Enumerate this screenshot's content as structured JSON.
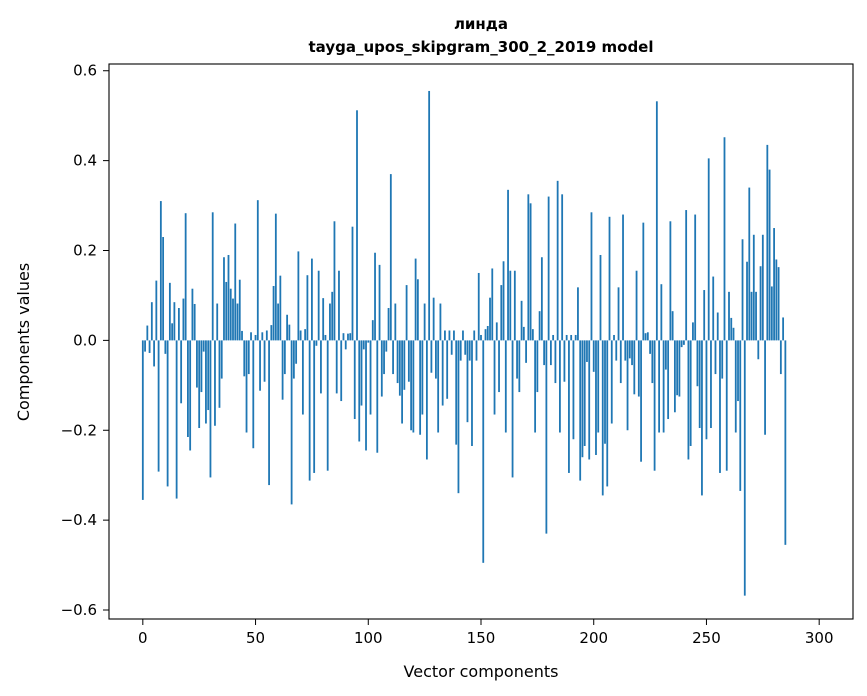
{
  "chart_data": {
    "type": "bar",
    "title": "линда",
    "subtitle": "tayga_upos_skipgram_300_2_2019 model",
    "xlabel": "Vector components",
    "ylabel": "Components values",
    "xlim": [
      -15,
      315
    ],
    "ylim": [
      -0.62,
      0.615
    ],
    "xticks": [
      0,
      50,
      100,
      150,
      200,
      250,
      300
    ],
    "xtick_labels": [
      "0",
      "50",
      "100",
      "150",
      "200",
      "250",
      "300"
    ],
    "yticks": [
      -0.6,
      -0.4,
      -0.2,
      0.0,
      0.2,
      0.4,
      0.6
    ],
    "ytick_labels": [
      "−0.6",
      "−0.4",
      "−0.2",
      "0.0",
      "0.2",
      "0.4",
      "0.6"
    ],
    "grid": false,
    "bar_color": "#1f77b4",
    "series": [
      {
        "values": [
          -0.355,
          -0.025,
          0.033,
          -0.028,
          0.085,
          -0.058,
          0.133,
          -0.292,
          0.31,
          0.23,
          -0.03,
          -0.325,
          0.128,
          0.038,
          0.085,
          -0.352,
          0.072,
          -0.14,
          0.093,
          0.283,
          -0.215,
          -0.245,
          0.115,
          0.081,
          -0.105,
          -0.195,
          -0.115,
          -0.025,
          -0.185,
          -0.155,
          -0.305,
          0.285,
          -0.19,
          0.082,
          -0.15,
          -0.085,
          0.185,
          0.13,
          0.19,
          0.115,
          0.093,
          0.26,
          0.082,
          0.135,
          0.021,
          -0.08,
          -0.205,
          -0.075,
          0.018,
          -0.24,
          0.012,
          0.312,
          -0.112,
          0.018,
          -0.092,
          0.022,
          -0.322,
          0.034,
          0.121,
          0.282,
          0.082,
          0.144,
          -0.132,
          -0.075,
          0.057,
          0.035,
          -0.365,
          -0.085,
          -0.052,
          0.198,
          0.022,
          -0.165,
          0.025,
          0.145,
          -0.312,
          0.182,
          -0.295,
          -0.012,
          0.155,
          -0.118,
          0.094,
          0.012,
          -0.29,
          0.082,
          0.108,
          0.265,
          -0.118,
          0.155,
          -0.135,
          0.016,
          -0.02,
          0.015,
          0.016,
          0.253,
          -0.175,
          0.512,
          -0.225,
          -0.145,
          -0.02,
          -0.245,
          -0.005,
          -0.165,
          0.045,
          0.195,
          -0.25,
          0.168,
          -0.125,
          -0.075,
          -0.025,
          0.072,
          0.37,
          -0.075,
          0.082,
          -0.095,
          -0.123,
          -0.185,
          -0.11,
          0.123,
          -0.092,
          -0.2,
          -0.205,
          0.182,
          0.136,
          -0.21,
          -0.165,
          0.082,
          -0.265,
          0.555,
          -0.072,
          0.095,
          -0.085,
          -0.205,
          0.082,
          -0.145,
          0.022,
          -0.13,
          0.022,
          -0.032,
          0.022,
          -0.232,
          -0.34,
          -0.045,
          0.022,
          -0.032,
          -0.182,
          -0.045,
          -0.235,
          0.022,
          -0.045,
          0.15,
          0.012,
          -0.495,
          0.025,
          0.032,
          0.095,
          0.16,
          -0.165,
          0.04,
          -0.115,
          0.123,
          0.176,
          -0.205,
          0.335,
          0.155,
          -0.305,
          0.155,
          -0.085,
          -0.115,
          0.088,
          0.03,
          -0.05,
          0.325,
          0.305,
          0.025,
          -0.205,
          -0.115,
          0.065,
          0.185,
          -0.055,
          -0.43,
          0.32,
          -0.055,
          0.012,
          -0.095,
          0.355,
          -0.205,
          0.325,
          -0.092,
          0.012,
          -0.295,
          0.012,
          -0.22,
          0.012,
          0.118,
          -0.312,
          -0.26,
          -0.235,
          -0.048,
          -0.265,
          0.285,
          -0.07,
          -0.255,
          -0.205,
          0.19,
          -0.345,
          -0.23,
          -0.325,
          0.275,
          -0.185,
          0.012,
          -0.045,
          0.118,
          -0.095,
          0.28,
          -0.045,
          -0.2,
          -0.04,
          -0.055,
          -0.12,
          0.155,
          -0.125,
          -0.27,
          0.262,
          0.016,
          0.018,
          -0.03,
          -0.095,
          -0.29,
          0.532,
          -0.205,
          0.125,
          -0.205,
          -0.065,
          -0.175,
          0.265,
          0.065,
          -0.16,
          -0.122,
          -0.125,
          -0.015,
          -0.01,
          0.29,
          -0.265,
          -0.235,
          0.04,
          0.28,
          -0.102,
          -0.195,
          -0.345,
          0.112,
          -0.22,
          0.405,
          -0.195,
          0.142,
          -0.075,
          0.062,
          -0.295,
          -0.085,
          0.452,
          -0.29,
          0.108,
          0.05,
          0.028,
          -0.205,
          -0.135,
          -0.335,
          0.225,
          -0.568,
          0.175,
          0.34,
          0.108,
          0.235,
          0.108,
          -0.042,
          0.165,
          0.235,
          -0.21,
          0.435,
          0.38,
          0.12,
          0.25,
          0.18,
          0.163,
          -0.075,
          0.051,
          -0.455
        ]
      }
    ]
  }
}
